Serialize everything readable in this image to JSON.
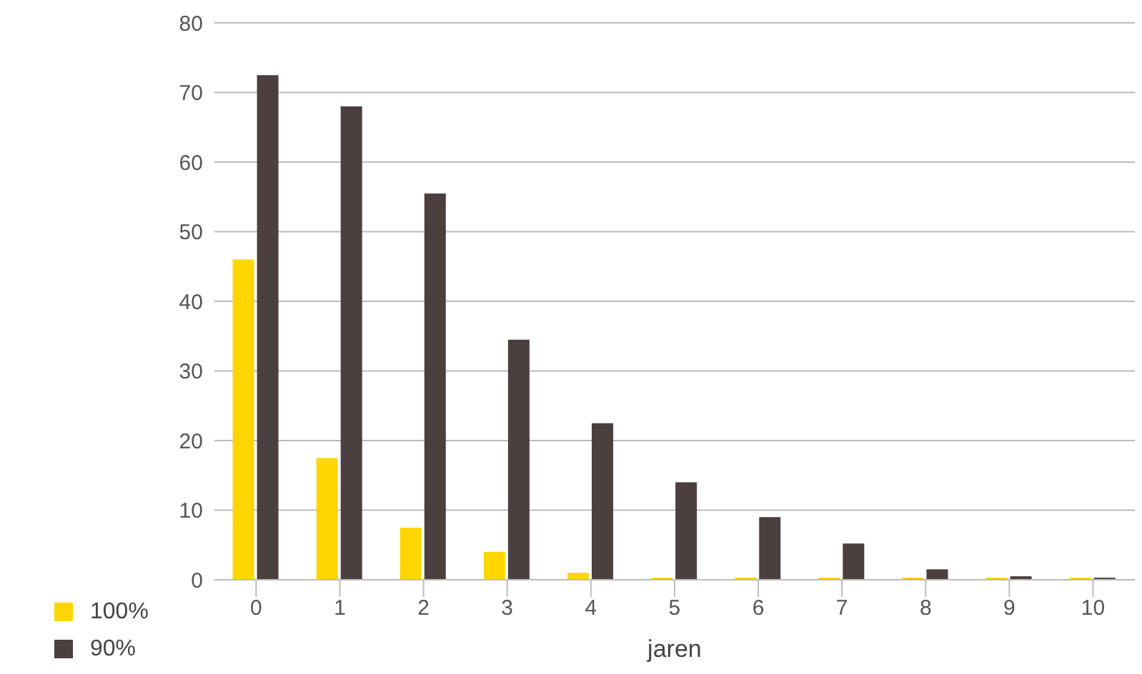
{
  "chart_data": {
    "type": "bar",
    "xlabel": "jaren",
    "categories": [
      "0",
      "1",
      "2",
      "3",
      "4",
      "5",
      "6",
      "7",
      "8",
      "9",
      "10"
    ],
    "series": [
      {
        "name": "100%",
        "color": "#ffd600",
        "values": [
          46,
          17.5,
          7.5,
          4,
          1,
          0.3,
          0.3,
          0.3,
          0.3,
          0.3,
          0.3
        ]
      },
      {
        "name": "90%",
        "color": "#4b3f3f",
        "values": [
          72.5,
          68,
          55.5,
          34.5,
          22.5,
          14,
          9,
          5.2,
          1.5,
          0.5,
          0.3
        ]
      }
    ],
    "ylim": [
      0,
      80
    ],
    "yticks": [
      0,
      10,
      20,
      30,
      40,
      50,
      60,
      70,
      80
    ],
    "grid": "y",
    "legend": "bottom left"
  }
}
